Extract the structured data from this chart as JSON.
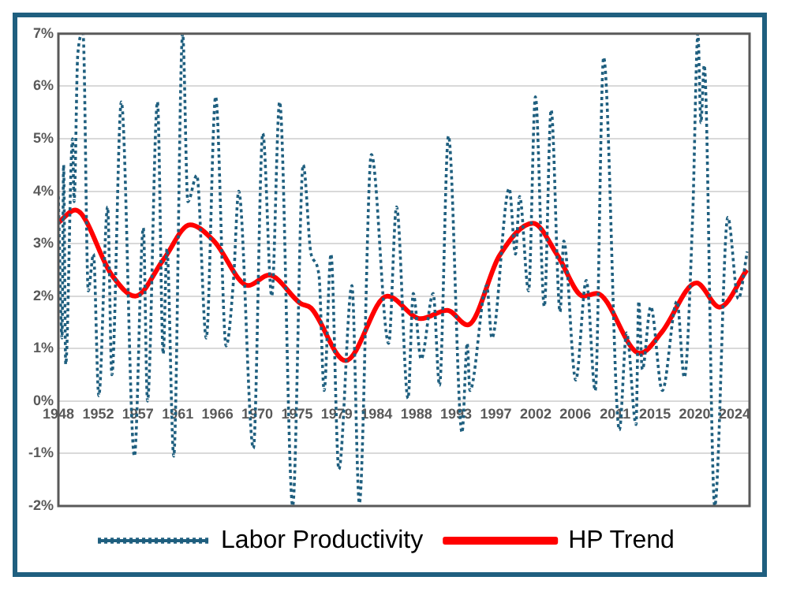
{
  "chart_data": {
    "type": "line",
    "xlim": [
      1948,
      2026.2
    ],
    "xticks": [
      {
        "value": 1948,
        "label": "1948"
      },
      {
        "value": 1952.5,
        "label": "1952"
      },
      {
        "value": 1957,
        "label": "1957"
      },
      {
        "value": 1961.5,
        "label": "1961"
      },
      {
        "value": 1966,
        "label": "1966"
      },
      {
        "value": 1970.5,
        "label": "1970"
      },
      {
        "value": 1975,
        "label": "1975"
      },
      {
        "value": 1979.5,
        "label": "1979"
      },
      {
        "value": 1984,
        "label": "1984"
      },
      {
        "value": 1988.5,
        "label": "1988"
      },
      {
        "value": 1993,
        "label": "1993"
      },
      {
        "value": 1997.5,
        "label": "1997"
      },
      {
        "value": 2002,
        "label": "2002"
      },
      {
        "value": 2006.5,
        "label": "2006"
      },
      {
        "value": 2011,
        "label": "2011"
      },
      {
        "value": 2015.5,
        "label": "2015"
      },
      {
        "value": 2020,
        "label": "2020"
      },
      {
        "value": 2024.5,
        "label": "2024"
      }
    ],
    "ylim": [
      -2,
      7
    ],
    "yticks": [
      {
        "value": -2,
        "label": "-2%"
      },
      {
        "value": -1,
        "label": "-1%"
      },
      {
        "value": 0,
        "label": "0%"
      },
      {
        "value": 1,
        "label": "1%"
      },
      {
        "value": 2,
        "label": "2%"
      },
      {
        "value": 3,
        "label": "3%"
      },
      {
        "value": 4,
        "label": "4%"
      },
      {
        "value": 5,
        "label": "5%"
      },
      {
        "value": 6,
        "label": "6%"
      },
      {
        "value": 7,
        "label": "7%"
      }
    ],
    "grid": "y",
    "legend": "bottom",
    "marker": "none",
    "series": [
      {
        "name": "Labor Productivity",
        "color": "#1f5f7f",
        "line_style": "dotted",
        "x": [
          1948.0,
          1948.41,
          1948.59,
          1948.83,
          1949.6,
          1949.78,
          1950.19,
          1950.79,
          1951.38,
          1951.97,
          1952.57,
          1953.57,
          1954.05,
          1955.12,
          1956.6,
          1957.61,
          1958.08,
          1959.21,
          1959.86,
          1960.28,
          1961.05,
          1962.06,
          1962.65,
          1963.66,
          1964.73,
          1965.79,
          1966.98,
          1967.81,
          1968.4,
          1970.06,
          1971.13,
          1972.14,
          1973.03,
          1974.51,
          1975.7,
          1976.59,
          1977.48,
          1978.07,
          1978.84,
          1979.73,
          1981.21,
          1982.05,
          1983.41,
          1985.37,
          1986.26,
          1987.56,
          1988.15,
          1989.04,
          1990.41,
          1991.12,
          1992.13,
          1993.67,
          1994.26,
          1994.56,
          1996.46,
          1997.05,
          1999.01,
          1999.72,
          2000.19,
          2001.2,
          2001.97,
          2002.98,
          2003.75,
          2004.76,
          2005.18,
          2006.54,
          2007.73,
          2008.74,
          2009.69,
          2011.47,
          2012.29,
          2013.36,
          2013.66,
          2014.07,
          2015.02,
          2016.33,
          2017.99,
          2018.82,
          2019.77,
          2020.36,
          2020.7,
          2021.07,
          2022.26,
          2023.74,
          2024.93,
          2025.94
        ],
        "values": [
          3.9,
          1.2,
          4.5,
          0.7,
          5.0,
          3.8,
          6.6,
          7.0,
          2.1,
          2.8,
          0.1,
          3.7,
          0.5,
          5.7,
          -1.05,
          3.3,
          0.0,
          5.7,
          0.9,
          2.9,
          -1.05,
          7.0,
          3.8,
          4.3,
          1.2,
          5.8,
          1.05,
          2.3,
          4.0,
          -0.9,
          5.1,
          2.0,
          5.7,
          -2.0,
          4.5,
          2.8,
          2.4,
          0.2,
          2.8,
          -1.3,
          2.2,
          -1.95,
          4.7,
          1.1,
          3.7,
          0.05,
          2.05,
          0.8,
          2.05,
          0.3,
          5.05,
          -0.6,
          1.1,
          0.2,
          2.2,
          1.2,
          4.05,
          2.8,
          3.9,
          2.1,
          5.8,
          1.8,
          5.55,
          1.7,
          3.05,
          0.4,
          2.3,
          0.2,
          6.55,
          -0.55,
          1.3,
          -0.45,
          1.9,
          0.6,
          1.8,
          0.2,
          1.9,
          0.45,
          3.55,
          7.0,
          5.3,
          6.4,
          -2.0,
          3.5,
          1.95,
          2.85
        ]
      },
      {
        "name": "HP Trend",
        "color": "#ff0000",
        "line_style": "solid",
        "x": [
          1948.0,
          1949.9,
          1954.05,
          1956.7,
          1959.9,
          1962.9,
          1965.6,
          1969.5,
          1971.8,
          1975.4,
          1976.6,
          1980.5,
          1985.2,
          1989.0,
          1992.0,
          1994.3,
          1997.9,
          2001.7,
          2004.5,
          2007.4,
          2008.9,
          2013.8,
          2016.3,
          2020.2,
          2022.8,
          2025.9
        ],
        "values": [
          3.4,
          3.64,
          2.4,
          2.0,
          2.7,
          3.36,
          3.05,
          2.2,
          2.4,
          1.86,
          1.77,
          0.77,
          2.0,
          1.57,
          1.73,
          1.45,
          2.77,
          3.39,
          2.77,
          2.0,
          2.05,
          0.91,
          1.32,
          2.25,
          1.79,
          2.5
        ]
      }
    ]
  }
}
